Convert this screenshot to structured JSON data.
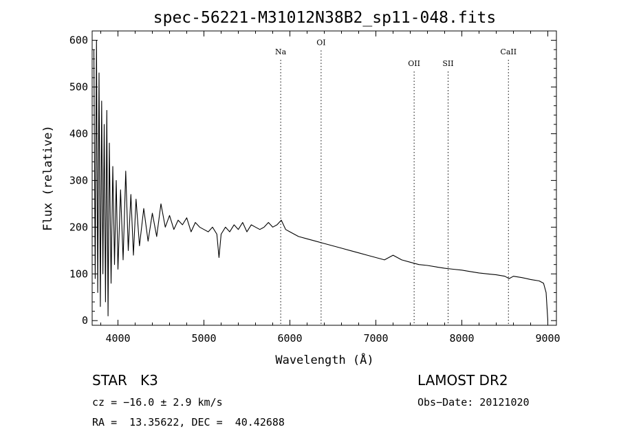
{
  "chart_data": {
    "type": "line",
    "title": "spec-56221-M31012N38B2_sp11-048.fits",
    "xlabel": "Wavelength (Å)",
    "ylabel": "Flux (relative)",
    "xlim": [
      3700,
      9100
    ],
    "ylim": [
      -10,
      620
    ],
    "xticks": [
      4000,
      5000,
      6000,
      7000,
      8000,
      9000
    ],
    "yticks": [
      0,
      100,
      200,
      300,
      400,
      500,
      600
    ],
    "grid": false,
    "line_color": "#000000",
    "marker_line_color": "#000000",
    "series": [
      {
        "x": [
          3720,
          3735,
          3750,
          3765,
          3780,
          3795,
          3810,
          3825,
          3840,
          3855,
          3870,
          3885,
          3900,
          3920,
          3940,
          3960,
          3980,
          4000,
          4030,
          4060,
          4090,
          4120,
          4150,
          4180,
          4210,
          4250,
          4300,
          4350,
          4400,
          4450,
          4500,
          4550,
          4600,
          4650,
          4700,
          4750,
          4800,
          4850,
          4900,
          4950,
          5000,
          5050,
          5100,
          5150,
          5175,
          5200,
          5250,
          5300,
          5350,
          5400,
          5450,
          5500,
          5550,
          5600,
          5650,
          5700,
          5750,
          5800,
          5850,
          5900,
          5950,
          6000,
          6100,
          6200,
          6300,
          6400,
          6500,
          6600,
          6700,
          6800,
          6900,
          7000,
          7100,
          7200,
          7300,
          7400,
          7500,
          7600,
          7700,
          7800,
          7900,
          8000,
          8100,
          8200,
          8300,
          8400,
          8500,
          8550,
          8600,
          8700,
          8800,
          8900,
          8950,
          8980,
          9000
        ],
        "y": [
          580,
          90,
          600,
          60,
          530,
          30,
          470,
          100,
          420,
          40,
          450,
          10,
          380,
          80,
          330,
          120,
          300,
          110,
          280,
          130,
          320,
          150,
          270,
          140,
          260,
          160,
          240,
          170,
          230,
          180,
          250,
          200,
          225,
          195,
          215,
          205,
          220,
          190,
          210,
          200,
          195,
          190,
          200,
          185,
          135,
          185,
          200,
          190,
          205,
          195,
          210,
          190,
          205,
          200,
          195,
          200,
          210,
          200,
          205,
          215,
          195,
          190,
          180,
          175,
          170,
          165,
          160,
          155,
          150,
          145,
          140,
          135,
          130,
          140,
          130,
          125,
          120,
          118,
          115,
          112,
          110,
          108,
          105,
          102,
          100,
          98,
          95,
          90,
          95,
          92,
          88,
          85,
          80,
          60,
          0
        ]
      }
    ],
    "annotations": [
      {
        "label": "Na",
        "x": 5893,
        "label_y": 570
      },
      {
        "label": "OI",
        "x": 6363,
        "label_y": 590
      },
      {
        "label": "OII",
        "x": 7445,
        "label_y": 545
      },
      {
        "label": "SII",
        "x": 7840,
        "label_y": 545
      },
      {
        "label": "CaII",
        "x": 8542,
        "label_y": 570
      }
    ]
  },
  "info": {
    "class_label": "STAR",
    "subclass": "K3",
    "survey": "LAMOST DR2",
    "redshift": "cz = −16.0 ± 2.9 km/s",
    "obs_date": "Obs−Date: 20121020",
    "coords": "RA =  13.35622, DEC =  40.42688"
  }
}
